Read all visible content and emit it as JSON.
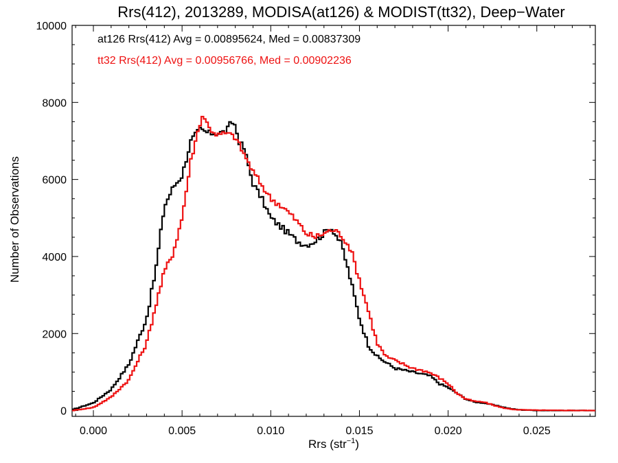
{
  "chart_data": {
    "type": "line",
    "style": "step-histogram",
    "title": "Rrs(412), 2013289, MODISA(at126) & MODIST(tt32), Deep−Water",
    "xlabel_main": "Rrs (str",
    "xlabel_sup": "−1",
    "xlabel_end": ")",
    "ylabel": "Number of Observations",
    "xlim": [
      -0.0012,
      0.0283
    ],
    "ylim": [
      -150,
      10000
    ],
    "grid": false,
    "xticks": [
      "0.000",
      "0.005",
      "0.010",
      "0.015",
      "0.020",
      "0.025"
    ],
    "xtick_values": [
      0.0,
      0.005,
      0.01,
      0.015,
      0.02,
      0.025
    ],
    "yticks": [
      "0",
      "2000",
      "4000",
      "6000",
      "8000",
      "10000"
    ],
    "ytick_values": [
      0,
      2000,
      4000,
      6000,
      8000,
      10000
    ],
    "annotations": [
      {
        "text": "at126 Rrs(412) Avg = 0.00895624, Med = 0.00837309",
        "color": "#000000"
      },
      {
        "text": "tt32 Rrs(412) Avg = 0.00956766, Med = 0.00902236",
        "color": "#ee1111"
      }
    ],
    "series": [
      {
        "color": "#000000",
        "x": [
          -0.0012,
          0.0,
          0.001,
          0.002,
          0.003,
          0.0035,
          0.004,
          0.0045,
          0.005,
          0.0055,
          0.006,
          0.0065,
          0.007,
          0.0075,
          0.0078,
          0.008,
          0.0082,
          0.0085,
          0.009,
          0.0095,
          0.01,
          0.0105,
          0.011,
          0.0115,
          0.012,
          0.0125,
          0.013,
          0.0133,
          0.0135,
          0.014,
          0.0145,
          0.015,
          0.0155,
          0.016,
          0.0165,
          0.017,
          0.0175,
          0.018,
          0.0185,
          0.019,
          0.0195,
          0.02,
          0.0205,
          0.021,
          0.0215,
          0.022,
          0.0225,
          0.023,
          0.0235,
          0.024,
          0.025,
          0.026,
          0.027,
          0.0283
        ],
        "y": [
          20,
          200,
          550,
          1200,
          2400,
          3600,
          5300,
          5800,
          6100,
          7000,
          7300,
          7200,
          7200,
          7250,
          7500,
          7400,
          7000,
          6800,
          5900,
          5500,
          5000,
          4800,
          4600,
          4400,
          4300,
          4400,
          4600,
          4750,
          4700,
          4300,
          3400,
          2400,
          1700,
          1400,
          1250,
          1100,
          1050,
          1000,
          950,
          900,
          700,
          600,
          450,
          300,
          220,
          200,
          150,
          100,
          50,
          20,
          5,
          0,
          0,
          0
        ]
      },
      {
        "color": "#ee1111",
        "x": [
          -0.0012,
          0.0,
          0.001,
          0.002,
          0.003,
          0.0035,
          0.004,
          0.0045,
          0.005,
          0.0055,
          0.006,
          0.0062,
          0.0065,
          0.007,
          0.0075,
          0.008,
          0.0085,
          0.009,
          0.0095,
          0.01,
          0.0105,
          0.011,
          0.0115,
          0.012,
          0.0125,
          0.013,
          0.0135,
          0.014,
          0.0145,
          0.015,
          0.0155,
          0.016,
          0.0165,
          0.017,
          0.0175,
          0.018,
          0.0185,
          0.019,
          0.0195,
          0.02,
          0.0205,
          0.021,
          0.0215,
          0.022,
          0.0225,
          0.023,
          0.0235,
          0.024,
          0.025,
          0.026,
          0.027,
          0.0283
        ],
        "y": [
          0,
          80,
          350,
          800,
          1750,
          2700,
          3600,
          4100,
          5000,
          6500,
          7450,
          7700,
          7350,
          7150,
          7200,
          7100,
          6650,
          6200,
          5850,
          5500,
          5350,
          5150,
          4900,
          4600,
          4500,
          4600,
          4700,
          4550,
          4200,
          3400,
          2600,
          1750,
          1400,
          1300,
          1200,
          1100,
          1050,
          980,
          850,
          700,
          450,
          300,
          240,
          220,
          150,
          80,
          40,
          20,
          10,
          5,
          5,
          0
        ]
      }
    ]
  }
}
